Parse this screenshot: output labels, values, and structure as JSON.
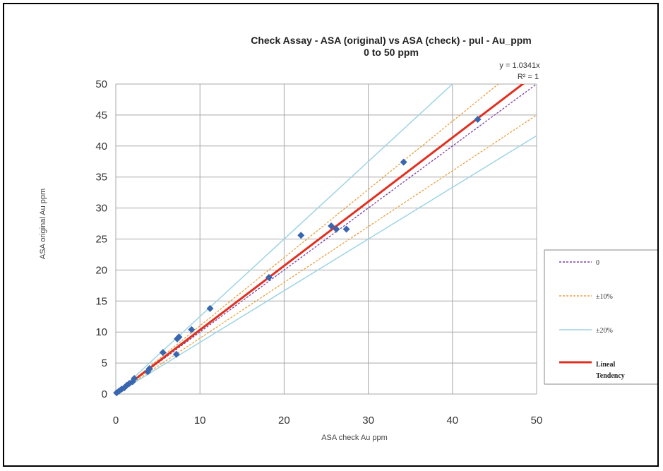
{
  "chart_data": {
    "type": "scatter",
    "title": "Check Assay - ASA (original) vs ASA (check) - pul - Au_ppm",
    "subtitle": "0 to 50 ppm",
    "xlabel": "ASA check Au ppm",
    "ylabel": "ASA original Au ppm",
    "xlim": [
      0,
      50
    ],
    "ylim": [
      0,
      50
    ],
    "xticks": [
      0,
      10,
      20,
      30,
      40,
      50
    ],
    "yticks": [
      0,
      5,
      10,
      15,
      20,
      25,
      30,
      35,
      40,
      45,
      50
    ],
    "grid": true,
    "legend_position": "right",
    "equation": "y = 1.0341x",
    "r_squared": "R² = 1",
    "points": [
      {
        "x": 0.1,
        "y": 0.2
      },
      {
        "x": 0.4,
        "y": 0.5
      },
      {
        "x": 0.7,
        "y": 0.8
      },
      {
        "x": 1.0,
        "y": 1.0
      },
      {
        "x": 1.3,
        "y": 1.4
      },
      {
        "x": 1.6,
        "y": 1.7
      },
      {
        "x": 2.0,
        "y": 2.0
      },
      {
        "x": 2.2,
        "y": 2.5
      },
      {
        "x": 3.8,
        "y": 3.6
      },
      {
        "x": 4.0,
        "y": 4.1
      },
      {
        "x": 5.6,
        "y": 6.7
      },
      {
        "x": 7.2,
        "y": 6.4
      },
      {
        "x": 7.3,
        "y": 8.9
      },
      {
        "x": 7.5,
        "y": 9.2
      },
      {
        "x": 9.0,
        "y": 10.4
      },
      {
        "x": 11.2,
        "y": 13.8
      },
      {
        "x": 18.2,
        "y": 18.8
      },
      {
        "x": 22.0,
        "y": 25.6
      },
      {
        "x": 25.6,
        "y": 27.1
      },
      {
        "x": 26.2,
        "y": 26.6
      },
      {
        "x": 27.4,
        "y": 26.6
      },
      {
        "x": 34.2,
        "y": 37.4
      },
      {
        "x": 43.0,
        "y": 44.3
      }
    ],
    "series": [
      {
        "name": "0",
        "slope": 1.0,
        "color": "#7b3fa0",
        "style": "dashed"
      },
      {
        "name": "±10%",
        "slopes": [
          1.1,
          0.9
        ],
        "color": "#e8a040",
        "style": "dashed"
      },
      {
        "name": "±20%",
        "slopes": [
          1.25,
          0.8333
        ],
        "color": "#9ed4e4",
        "style": "solid"
      },
      {
        "name": "Lineal Tendency",
        "slope": 1.0341,
        "color": "#e03020",
        "style": "solid"
      }
    ],
    "marker_color": "#3a66b0"
  }
}
